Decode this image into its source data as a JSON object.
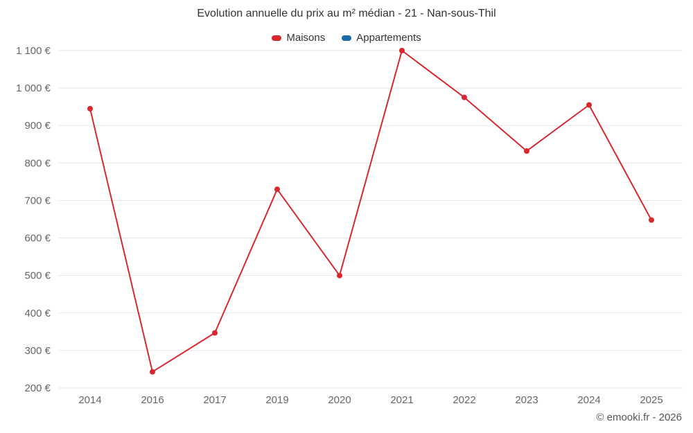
{
  "title": "Evolution annuelle du prix au m² médian - 21 - Nan-sous-Thil",
  "copyright": "© emooki.fr - 2026",
  "legend": [
    {
      "label": "Maisons",
      "color": "#d7282f"
    },
    {
      "label": "Appartements",
      "color": "#1b6ca8"
    }
  ],
  "chart_data": {
    "type": "line",
    "title": "Evolution annuelle du prix au m² médian - 21 - Nan-sous-Thil",
    "categories": [
      "2014",
      "2016",
      "2017",
      "2019",
      "2020",
      "2021",
      "2022",
      "2023",
      "2024",
      "2025"
    ],
    "series": [
      {
        "name": "Maisons",
        "color": "#d7282f",
        "values": [
          945,
          243,
          347,
          730,
          500,
          1100,
          975,
          832,
          955,
          648
        ]
      },
      {
        "name": "Appartements",
        "color": "#1b6ca8",
        "values": []
      }
    ],
    "xlabel": "",
    "ylabel": "",
    "ytick_suffix": " €",
    "ylim": [
      200,
      1100
    ],
    "ytick_step": 100,
    "grid": true,
    "grid_color": "#e6e6e6",
    "legend_position": "top",
    "marker_radius": 4
  }
}
